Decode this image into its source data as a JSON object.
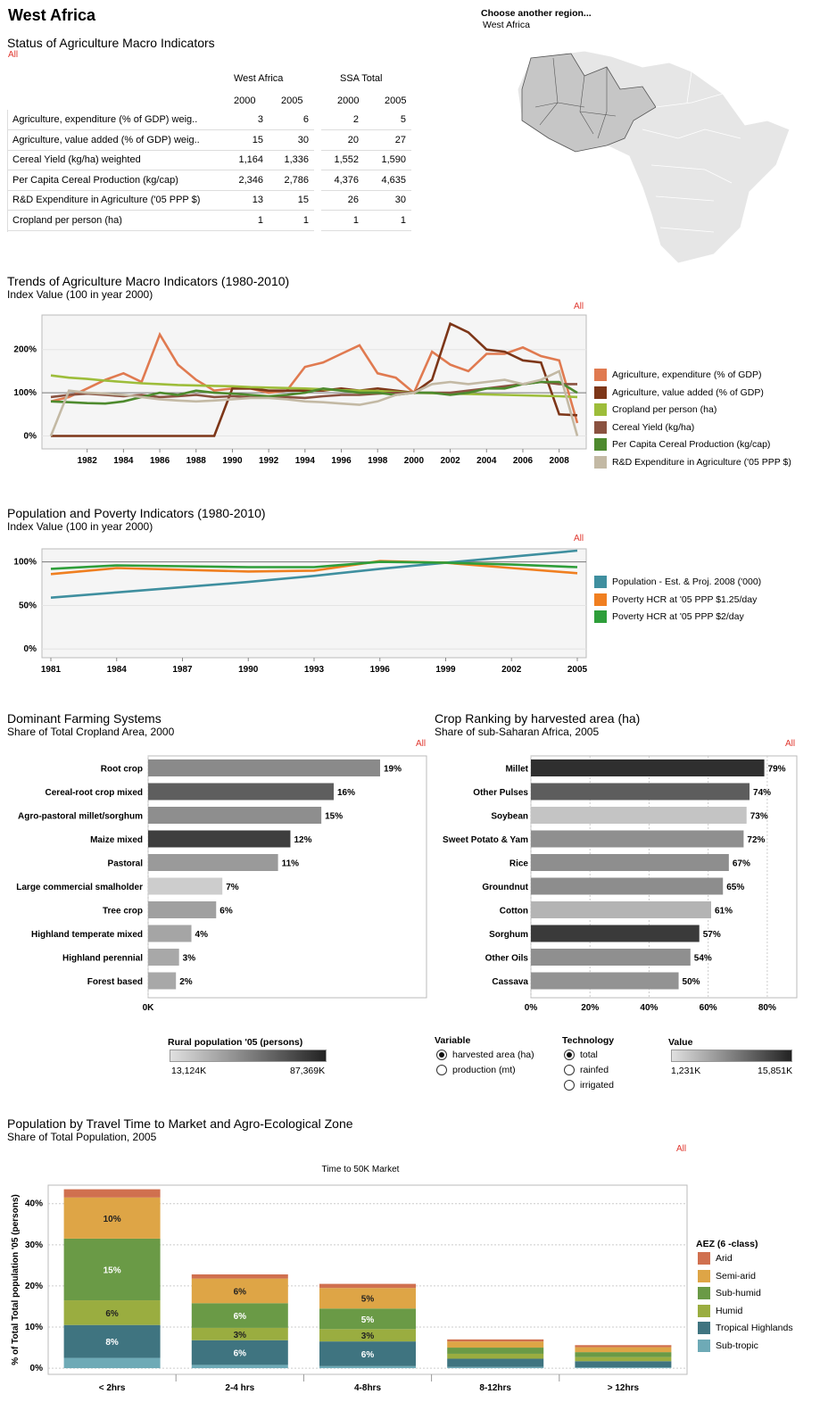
{
  "region": {
    "title": "West Africa",
    "choose_label": "Choose another region...",
    "selected": "West Africa"
  },
  "status": {
    "title": "Status of Agriculture Macro Indicators",
    "filter": "All",
    "group1": "West Africa",
    "group2": "SSA Total",
    "years": [
      "2000",
      "2005",
      "2000",
      "2005"
    ],
    "rows": [
      {
        "label": "Agriculture, expenditure (% of GDP) weig..",
        "v": [
          "3",
          "6",
          "2",
          "5"
        ]
      },
      {
        "label": "Agriculture, value added (% of GDP) weig..",
        "v": [
          "15",
          "30",
          "20",
          "27"
        ]
      },
      {
        "label": "Cereal Yield (kg/ha) weighted",
        "v": [
          "1,164",
          "1,336",
          "1,552",
          "1,590"
        ]
      },
      {
        "label": "Per Capita Cereal Production (kg/cap)",
        "v": [
          "2,346",
          "2,786",
          "4,376",
          "4,635"
        ]
      },
      {
        "label": "R&D Expenditure in Agriculture ('05 PPP $)",
        "v": [
          "13",
          "15",
          "26",
          "30"
        ]
      },
      {
        "label": "Cropland per person (ha)",
        "v": [
          "1",
          "1",
          "1",
          "1"
        ]
      }
    ]
  },
  "trends": {
    "title": "Trends of Agriculture Macro Indicators (1980-2010)",
    "subtitle": "Index Value (100 in year 2000)",
    "filter": "All"
  },
  "poverty": {
    "title": "Population and Poverty Indicators (1980-2010)",
    "subtitle": "Index Value (100 in year 2000)",
    "filter": "All"
  },
  "farming": {
    "title": "Dominant Farming Systems",
    "subtitle": "Share of Total Cropland Area, 2000",
    "filter": "All",
    "legend_title": "Rural population '05 (persons)",
    "legend_min": "13,124K",
    "legend_max": "87,369K"
  },
  "crops": {
    "title": "Crop Ranking by harvested area (ha)",
    "subtitle": "Share of sub-Saharan Africa, 2005",
    "filter": "All",
    "variable_title": "Variable",
    "variables": [
      "harvested area (ha)",
      "production (mt)"
    ],
    "technology_title": "Technology",
    "technologies": [
      "total",
      "rainfed",
      "irrigated"
    ],
    "value_title": "Value",
    "value_min": "1,231K",
    "value_max": "15,851K"
  },
  "travel": {
    "title": "Population by Travel Time to Market and Agro-Ecological Zone",
    "subtitle": "Share of Total Population, 2005",
    "filter": "All",
    "legend_title": "AEZ (6 -class)"
  },
  "colors": {
    "arid": "#d0704f",
    "semiarid": "#dea546",
    "subhumid": "#6a9a46",
    "humid": "#9aad40",
    "tropical": "#3f7480",
    "subtropic": "#6eaab6"
  },
  "chart_data": [
    {
      "type": "line",
      "id": "trends",
      "ylabel": "",
      "xlabel": "",
      "x": [
        1980,
        1981,
        1982,
        1983,
        1984,
        1985,
        1986,
        1987,
        1988,
        1989,
        1990,
        1991,
        1992,
        1993,
        1994,
        1995,
        1996,
        1997,
        1998,
        1999,
        2000,
        2001,
        2002,
        2003,
        2004,
        2005,
        2006,
        2007,
        2008,
        2009
      ],
      "x_ticks": [
        "1982",
        "1984",
        "1986",
        "1988",
        "1990",
        "1992",
        "1994",
        "1996",
        "1998",
        "2000",
        "2002",
        "2004",
        "2006",
        "2008"
      ],
      "y_ticks": [
        "0%",
        "100%",
        "200%"
      ],
      "ylim": [
        -30,
        280
      ],
      "series": [
        {
          "name": "Agriculture, expenditure (% of GDP)",
          "color": "#e07a50",
          "values": [
            80,
            90,
            110,
            130,
            145,
            125,
            235,
            165,
            130,
            105,
            110,
            110,
            100,
            105,
            160,
            170,
            190,
            210,
            145,
            135,
            100,
            195,
            165,
            150,
            190,
            190,
            205,
            185,
            175,
            30
          ]
        },
        {
          "name": "Agriculture, value added (% of GDP)",
          "color": "#7d3618",
          "values": [
            0,
            0,
            0,
            0,
            0,
            0,
            0,
            0,
            0,
            0,
            110,
            110,
            105,
            105,
            105,
            105,
            110,
            105,
            110,
            105,
            100,
            130,
            260,
            240,
            200,
            195,
            175,
            170,
            50,
            48
          ]
        },
        {
          "name": "Cropland per person (ha)",
          "color": "#9dbd3a",
          "values": [
            140,
            135,
            132,
            128,
            125,
            122,
            120,
            118,
            117,
            116,
            115,
            113,
            112,
            111,
            110,
            108,
            106,
            105,
            104,
            102,
            100,
            99,
            98,
            97,
            96,
            95,
            94,
            93,
            92,
            90
          ]
        },
        {
          "name": "Cereal Yield (kg/ha)",
          "color": "#8a5240",
          "values": [
            90,
            95,
            98,
            95,
            92,
            95,
            90,
            92,
            95,
            90,
            92,
            90,
            90,
            90,
            88,
            92,
            95,
            95,
            98,
            100,
            100,
            100,
            100,
            105,
            110,
            115,
            120,
            125,
            120,
            120
          ]
        },
        {
          "name": "Per Capita Cereal Production (kg/cap)",
          "color": "#4e8a2e",
          "values": [
            80,
            78,
            76,
            75,
            80,
            90,
            100,
            95,
            105,
            100,
            98,
            95,
            92,
            95,
            100,
            110,
            105,
            100,
            100,
            95,
            100,
            100,
            95,
            100,
            110,
            110,
            120,
            125,
            125,
            100
          ]
        },
        {
          "name": "R&D Expenditure in Agriculture ('05 PPP $)",
          "color": "#c3b9a4",
          "values": [
            0,
            105,
            100,
            98,
            95,
            90,
            85,
            82,
            80,
            82,
            85,
            88,
            88,
            85,
            80,
            78,
            75,
            72,
            80,
            95,
            100,
            120,
            125,
            120,
            125,
            130,
            120,
            130,
            150,
            0
          ]
        }
      ]
    },
    {
      "type": "line",
      "id": "poverty",
      "ylabel": "",
      "xlabel": "",
      "x": [
        1981,
        1984,
        1987,
        1990,
        1993,
        1996,
        1999,
        2002,
        2005
      ],
      "x_ticks": [
        "1981",
        "1984",
        "1987",
        "1990",
        "1993",
        "1996",
        "1999",
        "2002",
        "2005"
      ],
      "y_ticks": [
        "0%",
        "50%",
        "100%"
      ],
      "ylim": [
        -10,
        115
      ],
      "series": [
        {
          "name": "Population - Est. & Proj. 2008 ('000)",
          "color": "#3f8f9f",
          "values": [
            59,
            65,
            71,
            77,
            84,
            92,
            99,
            106,
            113
          ]
        },
        {
          "name": "Poverty HCR at '05 PPP $1.25/day",
          "color": "#f07f20",
          "values": [
            86,
            93,
            91,
            89,
            90,
            101,
            99,
            93,
            87
          ]
        },
        {
          "name": "Poverty HCR at '05 PPP $2/day",
          "color": "#2e9e3a",
          "values": [
            92,
            96,
            95,
            94,
            94,
            100,
            99,
            97,
            94
          ]
        }
      ]
    },
    {
      "type": "bar",
      "id": "farming",
      "orientation": "horizontal",
      "categories": [
        "Root crop",
        "Cereal-root crop mixed",
        "Agro-pastoral millet/sorghum",
        "Maize mixed",
        "Pastoral",
        "Large commercial smalholder",
        "Tree crop",
        "Highland temperate mixed",
        "Highland perennial",
        "Forest based"
      ],
      "values": [
        37500,
        30000,
        28000,
        23000,
        21000,
        12000,
        11000,
        7000,
        5000,
        4500
      ],
      "labels": [
        "19%",
        "16%",
        "15%",
        "12%",
        "11%",
        "7%",
        "6%",
        "4%",
        "3%",
        "2%"
      ],
      "shades": [
        "#8a8a8a",
        "#5e5e5e",
        "#8e8e8e",
        "#3e3e3e",
        "#9a9a9a",
        "#cdcdcd",
        "#a0a0a0",
        "#a5a5a5",
        "#a8a8a8",
        "#a8a8a8"
      ],
      "x_ticks": [
        "0K",
        "10,000K",
        "20,000K",
        "30,000K",
        "40,000K"
      ],
      "xlim": [
        0,
        45000
      ]
    },
    {
      "type": "bar",
      "id": "crops",
      "orientation": "horizontal",
      "categories": [
        "Millet",
        "Other Pulses",
        "Soybean",
        "Sweet Potato & Yam",
        "Rice",
        "Groundnut",
        "Cotton",
        "Sorghum",
        "Other Oils",
        "Cassava"
      ],
      "values": [
        79,
        74,
        73,
        72,
        67,
        65,
        61,
        57,
        54,
        50
      ],
      "labels": [
        "79%",
        "74%",
        "73%",
        "72%",
        "67%",
        "65%",
        "61%",
        "57%",
        "54%",
        "50%"
      ],
      "shades": [
        "#2f2f2f",
        "#5d5d5d",
        "#c4c4c4",
        "#8f8f8f",
        "#8e8e8e",
        "#8d8d8d",
        "#b4b4b4",
        "#3a3a3a",
        "#8f8f8f",
        "#939393"
      ],
      "x_ticks": [
        "0%",
        "20%",
        "40%",
        "60%",
        "80%"
      ],
      "xlim": [
        0,
        90
      ]
    },
    {
      "type": "bar",
      "id": "travel",
      "stacked": true,
      "title": "Time to 50K Market",
      "ylabel": "% of Total Total population '05 (persons)",
      "categories": [
        "< 2hrs",
        "2-4 hrs",
        "4-8hrs",
        "8-12hrs",
        "> 12hrs"
      ],
      "y_ticks": [
        "0%",
        "10%",
        "20%",
        "30%",
        "40%"
      ],
      "ylim": [
        -1.5,
        44.5
      ],
      "series": [
        {
          "name": "Sub-tropic",
          "color": "#6eaab6",
          "values": [
            2.5,
            0.8,
            0.5,
            0.3,
            0.2
          ],
          "labels": [
            "",
            "",
            "",
            "",
            ""
          ]
        },
        {
          "name": "Tropical Highlands",
          "color": "#3f7480",
          "values": [
            8,
            6,
            6,
            2,
            1.5
          ],
          "labels": [
            "8%",
            "6%",
            "6%",
            "",
            ""
          ]
        },
        {
          "name": "Humid",
          "color": "#9aad40",
          "values": [
            6,
            3,
            3,
            1.2,
            1
          ],
          "labels": [
            "6%",
            "3%",
            "3%",
            "",
            ""
          ]
        },
        {
          "name": "Sub-humid",
          "color": "#6a9a46",
          "values": [
            15,
            6,
            5,
            1.5,
            1.2
          ],
          "labels": [
            "15%",
            "6%",
            "5%",
            "",
            ""
          ]
        },
        {
          "name": "Semi-arid",
          "color": "#dea546",
          "values": [
            10,
            6,
            5,
            1.5,
            1.2
          ],
          "labels": [
            "10%",
            "6%",
            "5%",
            "",
            ""
          ]
        },
        {
          "name": "Arid",
          "color": "#d0704f",
          "values": [
            2,
            1,
            1,
            0.5,
            0.5
          ],
          "labels": [
            "",
            "",
            "",
            "",
            ""
          ]
        }
      ]
    }
  ]
}
